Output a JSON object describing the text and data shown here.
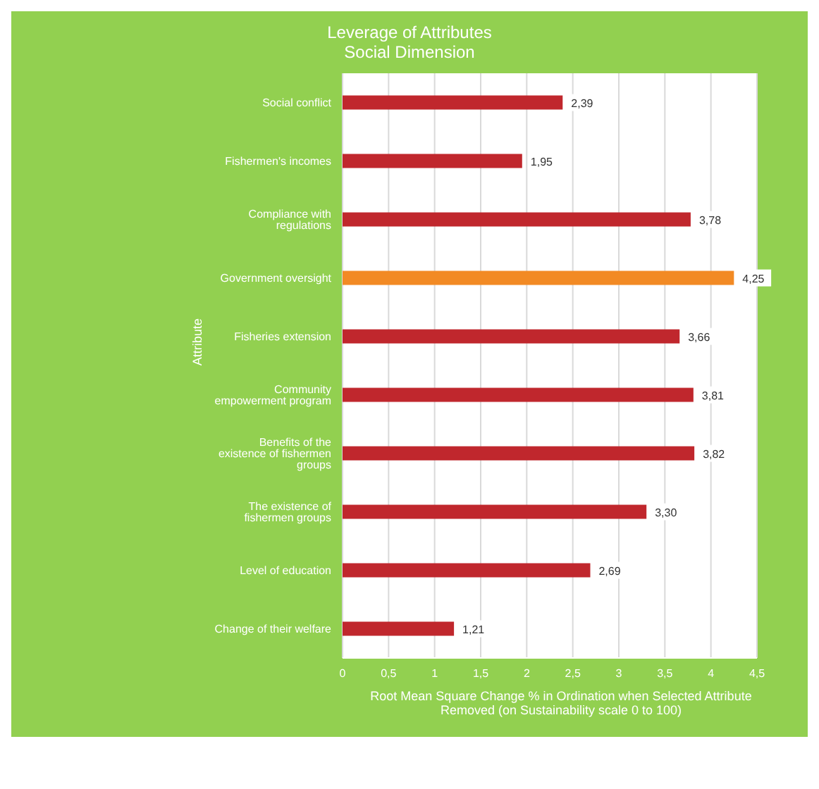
{
  "chart_data": {
    "type": "bar",
    "orientation": "horizontal",
    "title": "Leverage of Attributes",
    "subtitle": "Social Dimension",
    "xlabel": "Root Mean Square Change % in Ordination when Selected Attribute Removed (on Sustainability scale 0 to 100)",
    "ylabel": "Attribute",
    "categories": [
      "Social conflict",
      "Fishermen's incomes",
      "Compliance with regulations",
      "Government oversight",
      "Fisheries extension",
      "Community empowerment program",
      "Benefits of the existence of fishermen groups",
      "The existence of fishermen groups",
      "Level of education",
      "Change of their welfare"
    ],
    "values": [
      2.39,
      1.95,
      3.78,
      4.25,
      3.66,
      3.81,
      3.82,
      3.3,
      2.69,
      1.21
    ],
    "colors": [
      "#c0272d",
      "#c0272d",
      "#c0272d",
      "#f28a24",
      "#c0272d",
      "#c0272d",
      "#c0272d",
      "#c0272d",
      "#c0272d",
      "#c0272d"
    ],
    "value_labels": [
      "2,39",
      "1,95",
      "3,78",
      "4,25",
      "3,66",
      "3,81",
      "3,82",
      "3,30",
      "2,69",
      "1,21"
    ],
    "xlim": [
      0,
      4.5
    ],
    "xticks": [
      0,
      {
        "value": 0.5,
        "label": "0,5"
      },
      1,
      {
        "value": 1.5,
        "label": "1,5"
      },
      2,
      {
        "value": 2.5,
        "label": "2,5"
      },
      3,
      {
        "value": 3.5,
        "label": "3,5"
      },
      4,
      {
        "value": 4.5,
        "label": "4,5"
      }
    ],
    "grid": "x"
  }
}
